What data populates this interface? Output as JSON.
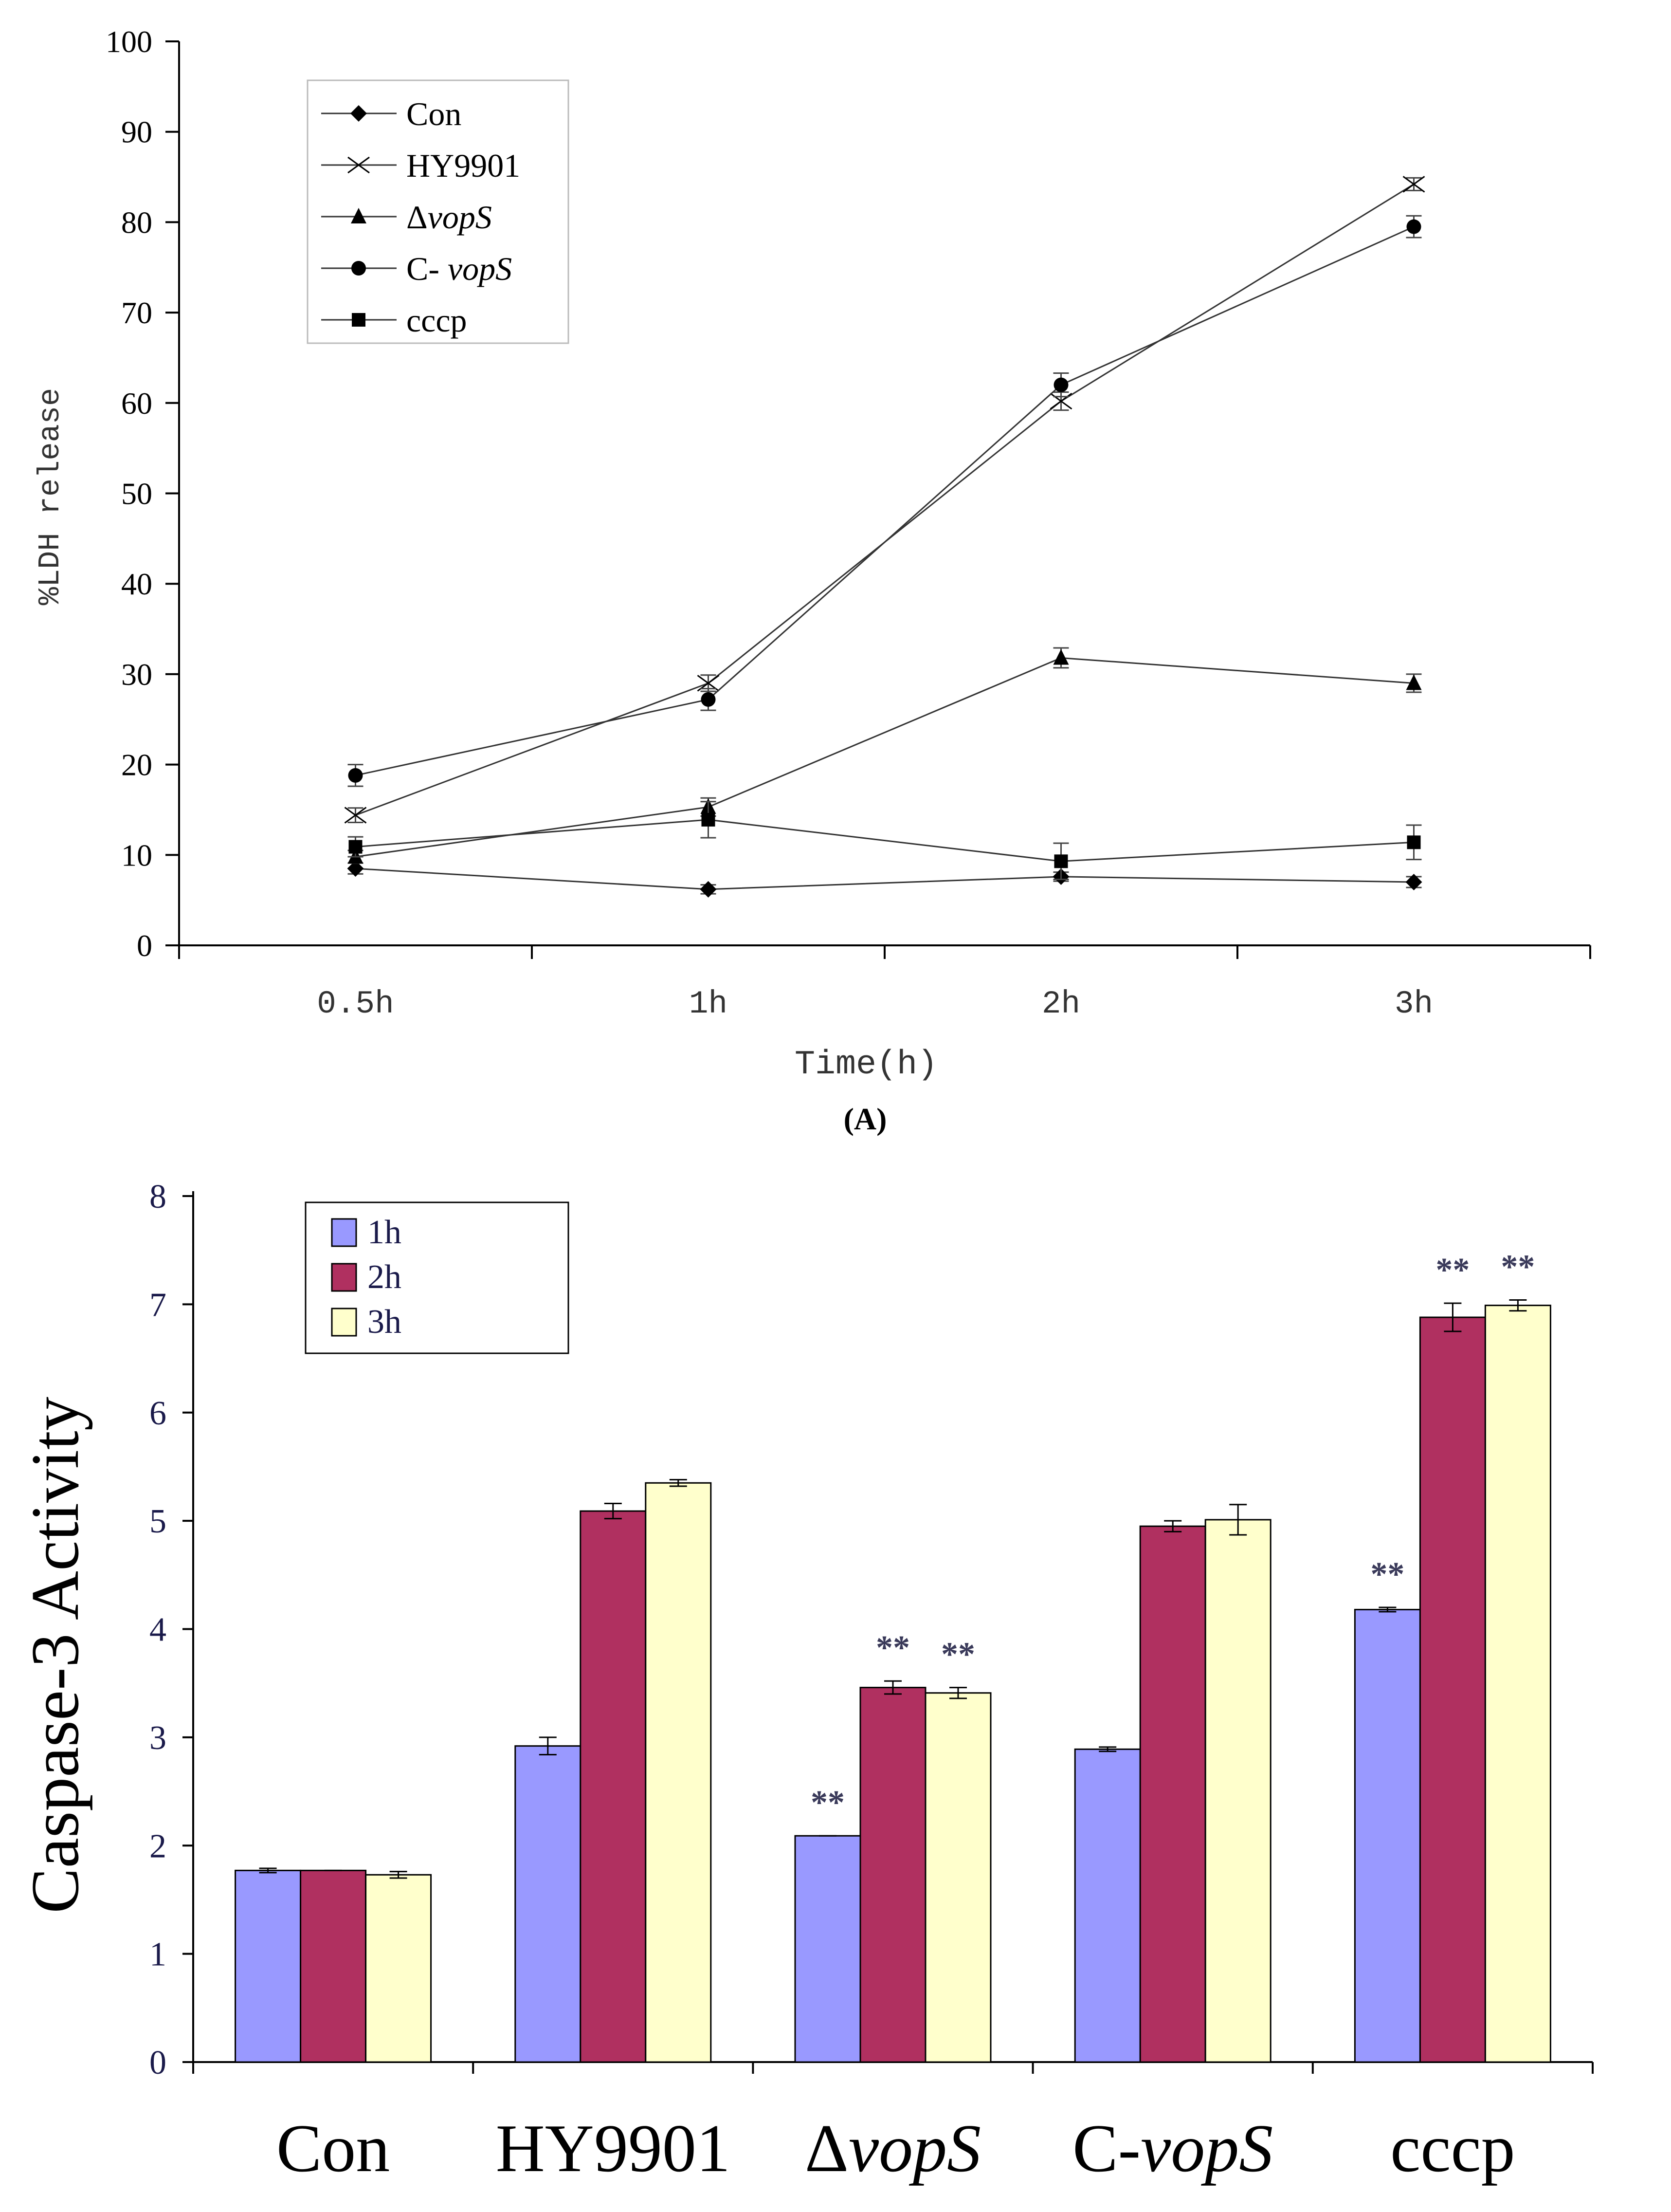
{
  "chart_data": [
    {
      "type": "line",
      "panel_label": "A",
      "title": "",
      "xlabel": "Time(h)",
      "ylabel": "%LDH release",
      "categories": [
        "0.5h",
        "1h",
        "2h",
        "3h"
      ],
      "ylim": [
        0,
        100
      ],
      "yticks": [
        "0",
        "10",
        "20",
        "30",
        "40",
        "50",
        "60",
        "70",
        "80",
        "90",
        "100"
      ],
      "legend_position": "top-left",
      "series": [
        {
          "name": "Con",
          "name_prefix": "Con",
          "name_italic": "",
          "marker": "diamond",
          "values": [
            8.5,
            6.2,
            7.6,
            7.0
          ],
          "errors": [
            0.6,
            0.5,
            0.5,
            0.6
          ]
        },
        {
          "name": "HY9901",
          "name_prefix": "HY9901",
          "name_italic": "",
          "marker": "x",
          "values": [
            14.4,
            29.0,
            60.2,
            84.2
          ],
          "errors": [
            0.8,
            0.9,
            1.0,
            0.7
          ]
        },
        {
          "name": "ΔvopS",
          "name_prefix": "Δ",
          "name_italic": "vopS",
          "marker": "triangle",
          "values": [
            9.8,
            15.3,
            31.8,
            29.0
          ],
          "errors": [
            0.7,
            1.0,
            1.1,
            1.0
          ]
        },
        {
          "name": "C- vopS",
          "name_prefix": "C- ",
          "name_italic": "vopS",
          "marker": "circle",
          "values": [
            18.8,
            27.2,
            62.0,
            79.5
          ],
          "errors": [
            1.2,
            1.2,
            1.3,
            1.2
          ]
        },
        {
          "name": "cccp",
          "name_prefix": "cccp",
          "name_italic": "",
          "marker": "square",
          "values": [
            10.9,
            13.9,
            9.3,
            11.4
          ],
          "errors": [
            1.1,
            2.0,
            2.0,
            1.9
          ]
        }
      ]
    },
    {
      "type": "bar",
      "title": "",
      "xlabel": "",
      "ylabel": "Caspase-3 Activity",
      "categories": [
        "Con",
        "HY9901",
        "ΔvopS",
        "C-vopS",
        "cccp"
      ],
      "category_parts": [
        {
          "prefix": "Con",
          "italic": ""
        },
        {
          "prefix": "HY9901",
          "italic": ""
        },
        {
          "prefix": "Δ",
          "italic": "vopS"
        },
        {
          "prefix": "C-",
          "italic": "vopS"
        },
        {
          "prefix": "cccp",
          "italic": ""
        }
      ],
      "ylim": [
        0,
        8
      ],
      "yticks": [
        "0",
        "1",
        "2",
        "3",
        "4",
        "5",
        "6",
        "7",
        "8"
      ],
      "legend_position": "top-left",
      "significance_label": "**",
      "series": [
        {
          "name": "1h",
          "color": "#9999ff",
          "values": [
            1.77,
            2.92,
            2.09,
            2.89,
            4.18
          ],
          "errors": [
            0.02,
            0.08,
            0.0,
            0.02,
            0.02
          ],
          "significant": [
            false,
            false,
            true,
            false,
            true
          ]
        },
        {
          "name": "2h",
          "color": "#b03060",
          "values": [
            1.77,
            5.09,
            3.46,
            4.95,
            6.88
          ],
          "errors": [
            0.0,
            0.07,
            0.06,
            0.05,
            0.13
          ],
          "significant": [
            false,
            false,
            true,
            false,
            true
          ]
        },
        {
          "name": "3h",
          "color": "#ffffcc",
          "values": [
            1.73,
            5.35,
            3.41,
            5.01,
            6.99
          ],
          "errors": [
            0.03,
            0.03,
            0.05,
            0.14,
            0.05
          ],
          "significant": [
            false,
            false,
            true,
            false,
            true
          ]
        }
      ]
    }
  ]
}
